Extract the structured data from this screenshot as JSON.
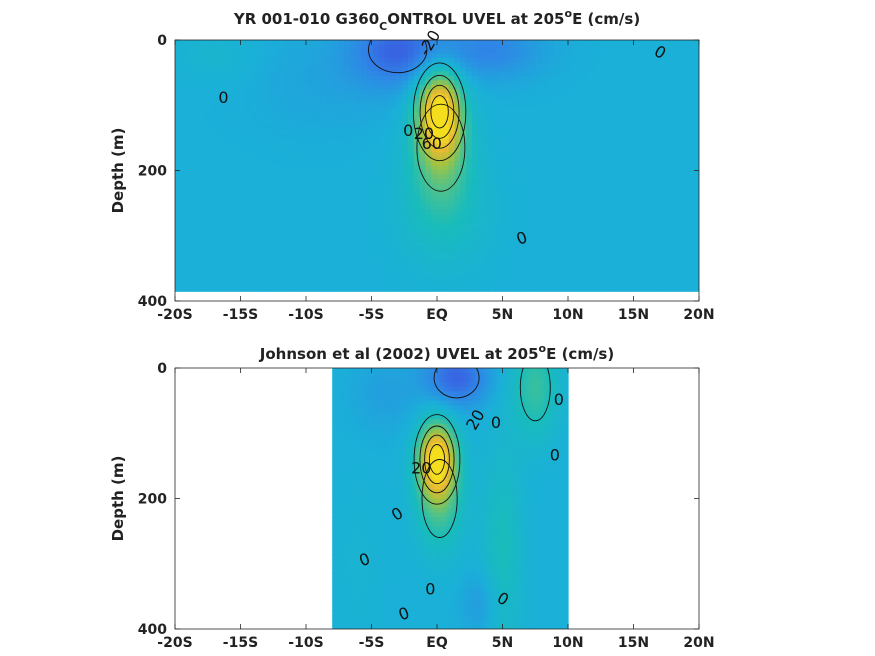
{
  "figure": {
    "colormap": [
      "#3d4fe0",
      "#2f86e6",
      "#1ab0d8",
      "#19bcbb",
      "#55c286",
      "#a3c340",
      "#e7b834",
      "#f4de1e"
    ],
    "clim_cm_per_s": [
      -40,
      100
    ]
  },
  "chart_data": [
    {
      "type": "heatmap",
      "panel": "model",
      "title_parts": [
        "YR 001-010 G360",
        "C",
        "ONTROL UVEL at 205",
        "o",
        "E (cm/s)"
      ],
      "xlabel": "",
      "ylabel": "Depth (m)",
      "xlim": [
        -20,
        20
      ],
      "ylim": [
        400,
        0
      ],
      "xticks": [
        -20,
        -15,
        -10,
        -5,
        0,
        5,
        10,
        15,
        20
      ],
      "xtick_labels": [
        "-20S",
        "-15S",
        "-10S",
        "-5S",
        "EQ",
        "5N",
        "10N",
        "15N",
        "20N"
      ],
      "yticks": [
        0,
        200,
        400
      ],
      "ytick_labels": [
        "0",
        "200",
        "400"
      ],
      "data_extent": {
        "lat": [
          -20,
          20
        ],
        "depth": [
          0,
          385
        ]
      },
      "features": [
        {
          "kind": "core",
          "lat": 0.2,
          "depth": 110,
          "speed": 95,
          "lat_width": 1.6,
          "depth_width": 60
        },
        {
          "kind": "core",
          "lat": 0.3,
          "depth": 165,
          "speed": 40,
          "lat_width": 2.2,
          "depth_width": 80
        },
        {
          "kind": "core",
          "lat": 0.5,
          "depth": 260,
          "speed": 18,
          "lat_width": 3.5,
          "depth_width": 90
        },
        {
          "kind": "core",
          "lat": -3.0,
          "depth": 15,
          "speed": -30,
          "lat_width": 3.5,
          "depth_width": 55
        },
        {
          "kind": "core",
          "lat": 4.0,
          "depth": 15,
          "speed": -20,
          "lat_width": 4.0,
          "depth_width": 45
        },
        {
          "kind": "core",
          "lat": -8.0,
          "depth": 60,
          "speed": -6,
          "lat_width": 6.0,
          "depth_width": 80
        },
        {
          "kind": "core",
          "lat": -17.0,
          "depth": 25,
          "speed": 7,
          "lat_width": 3.0,
          "depth_width": 40
        }
      ],
      "contour_levels": [
        -20,
        0,
        20,
        40,
        60,
        80
      ],
      "contour_labels": [
        {
          "text": "-20",
          "lat": -0.5,
          "depth": 5,
          "angle": -60
        },
        {
          "text": "0",
          "lat": -16.3,
          "depth": 90,
          "angle": 0
        },
        {
          "text": "0",
          "lat": 17.0,
          "depth": 20,
          "angle": 30
        },
        {
          "text": "0",
          "lat": 6.5,
          "depth": 305,
          "angle": -20
        },
        {
          "text": "0",
          "lat": -2.2,
          "depth": 140,
          "angle": 0
        },
        {
          "text": "20",
          "lat": -1.0,
          "depth": 145,
          "angle": 0
        },
        {
          "text": "60",
          "lat": -0.4,
          "depth": 160,
          "angle": 0
        }
      ]
    },
    {
      "type": "heatmap",
      "panel": "observed",
      "title_parts": [
        "Johnson et al (2002) UVEL at 205",
        "o",
        "E (cm/s)"
      ],
      "xlabel": "",
      "ylabel": "Depth (m)",
      "xlim": [
        -20,
        20
      ],
      "ylim": [
        400,
        0
      ],
      "xticks": [
        -20,
        -15,
        -10,
        -5,
        0,
        5,
        10,
        15,
        20
      ],
      "xtick_labels": [
        "-20S",
        "-15S",
        "-10S",
        "-5S",
        "EQ",
        "5N",
        "10N",
        "15N",
        "20N"
      ],
      "yticks": [
        0,
        200,
        400
      ],
      "ytick_labels": [
        "0",
        "200",
        "400"
      ],
      "data_extent": {
        "lat": [
          -8,
          10
        ],
        "depth": [
          0,
          400
        ]
      },
      "features": [
        {
          "kind": "core",
          "lat": 0.0,
          "depth": 140,
          "speed": 95,
          "lat_width": 1.4,
          "depth_width": 55
        },
        {
          "kind": "core",
          "lat": 0.2,
          "depth": 200,
          "speed": 35,
          "lat_width": 1.8,
          "depth_width": 80
        },
        {
          "kind": "core",
          "lat": 1.5,
          "depth": 15,
          "speed": -32,
          "lat_width": 2.5,
          "depth_width": 45
        },
        {
          "kind": "core",
          "lat": -4.0,
          "depth": 40,
          "speed": -8,
          "lat_width": 2.5,
          "depth_width": 60
        },
        {
          "kind": "core",
          "lat": 7.5,
          "depth": 30,
          "speed": 30,
          "lat_width": 1.8,
          "depth_width": 80
        },
        {
          "kind": "core",
          "lat": 5.0,
          "depth": 280,
          "speed": 20,
          "lat_width": 1.5,
          "depth_width": 160
        },
        {
          "kind": "core",
          "lat": -6.0,
          "depth": 300,
          "speed": 5,
          "lat_width": 2.0,
          "depth_width": 120
        },
        {
          "kind": "core",
          "lat": 3.5,
          "depth": 360,
          "speed": -12,
          "lat_width": 1.5,
          "depth_width": 50
        }
      ],
      "contour_levels": [
        -20,
        0,
        20,
        40,
        60,
        80
      ],
      "contour_labels": [
        {
          "text": "20",
          "lat": 3.0,
          "depth": 80,
          "angle": -60
        },
        {
          "text": "0",
          "lat": 9.3,
          "depth": 50,
          "angle": 0
        },
        {
          "text": "0",
          "lat": 4.5,
          "depth": 85,
          "angle": 0
        },
        {
          "text": "0",
          "lat": 9.0,
          "depth": 135,
          "angle": 0
        },
        {
          "text": "20",
          "lat": -1.2,
          "depth": 155,
          "angle": 0
        },
        {
          "text": "0",
          "lat": -3.0,
          "depth": 225,
          "angle": -30
        },
        {
          "text": "0",
          "lat": -5.5,
          "depth": 295,
          "angle": -20
        },
        {
          "text": "0",
          "lat": -0.5,
          "depth": 340,
          "angle": 0
        },
        {
          "text": "0",
          "lat": -2.5,
          "depth": 378,
          "angle": -20
        },
        {
          "text": "0",
          "lat": 5.0,
          "depth": 355,
          "angle": 30
        }
      ]
    }
  ]
}
